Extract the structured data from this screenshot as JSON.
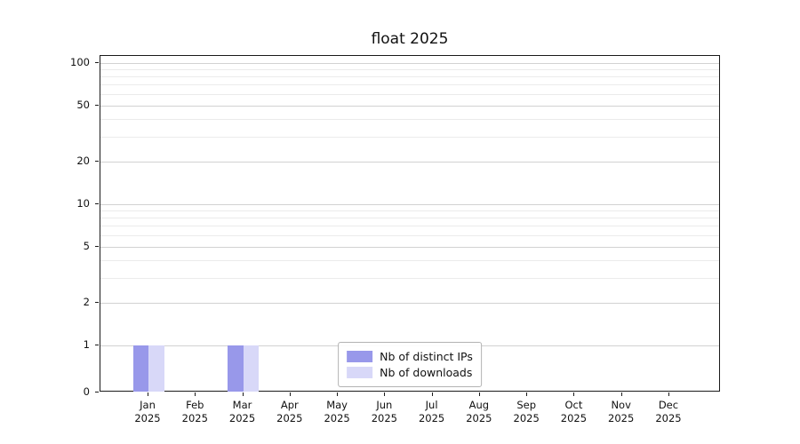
{
  "title": "float 2025",
  "chart_data": {
    "type": "bar",
    "title": "float 2025",
    "yscale": "symlog",
    "grid": true,
    "legend_position": "bottom-center",
    "ylim": [
      0,
      100
    ],
    "yticks": [
      0,
      1,
      2,
      5,
      10,
      20,
      50,
      100
    ],
    "minor_yticks": [
      3,
      4,
      6,
      7,
      8,
      9,
      30,
      40,
      60,
      70,
      80,
      90
    ],
    "categories": [
      {
        "month": "Jan",
        "year": "2025"
      },
      {
        "month": "Feb",
        "year": "2025"
      },
      {
        "month": "Mar",
        "year": "2025"
      },
      {
        "month": "Apr",
        "year": "2025"
      },
      {
        "month": "May",
        "year": "2025"
      },
      {
        "month": "Jun",
        "year": "2025"
      },
      {
        "month": "Jul",
        "year": "2025"
      },
      {
        "month": "Aug",
        "year": "2025"
      },
      {
        "month": "Sep",
        "year": "2025"
      },
      {
        "month": "Oct",
        "year": "2025"
      },
      {
        "month": "Nov",
        "year": "2025"
      },
      {
        "month": "Dec",
        "year": "2025"
      }
    ],
    "series": [
      {
        "name": "Nb of distinct IPs",
        "color": "#9898ea",
        "values": [
          1,
          0,
          1,
          0,
          0,
          0,
          0,
          0,
          0,
          0,
          0,
          0
        ]
      },
      {
        "name": "Nb of downloads",
        "color": "#d8d8f8",
        "values": [
          1,
          0,
          1,
          0,
          0,
          0,
          0,
          0,
          0,
          0,
          0,
          0
        ]
      }
    ]
  },
  "colors": {
    "axis": "#1a1a1a",
    "grid_major": "#d2d2d2",
    "grid_minor": "#ebebeb",
    "background": "#ffffff"
  }
}
